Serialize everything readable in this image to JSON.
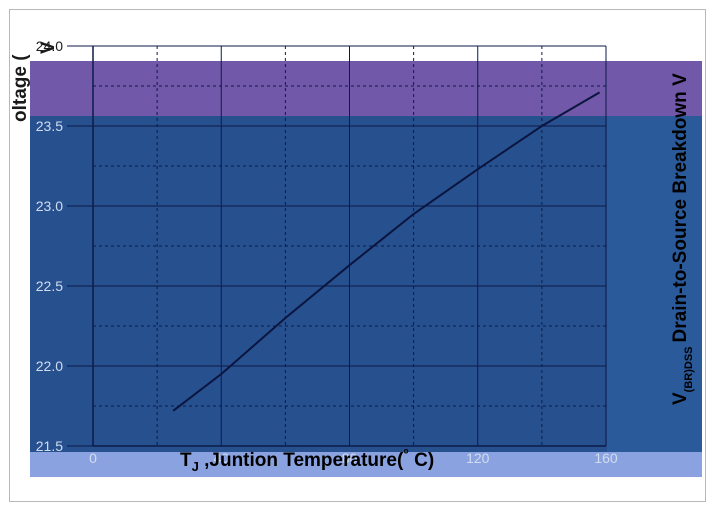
{
  "colors": {
    "plot_top_band": "#7258a8",
    "plot_body": "#27508f",
    "right_strip": "#2a5a9a",
    "bottom_strip": "#8aa3e0",
    "grid_major": "#0b1a4a",
    "grid_minor": "#0b1a4a",
    "line": "#0a1540",
    "tick_text_light": "#d2dcef",
    "tick_text_dark": "#1a1a1a"
  },
  "chart_data": {
    "type": "line",
    "title": "",
    "xlabel": "T",
    "xlabel_sub": "J",
    "xlabel_rest": " ,Juntion Temperature(",
    "xlabel_degree": "°",
    "xlabel_unit": " C)",
    "ylabel_main": "Drain-to-Source Breakdown V",
    "ylabel_prefix": "V",
    "ylabel_sub": "(BR)DSS",
    "ylabel_top_fragment": "oltage (",
    "ylabel_corner_fragment": "V",
    "xlim": [
      0,
      160
    ],
    "ylim": [
      21.5,
      24.0
    ],
    "x_ticks": [
      0,
      40,
      80,
      120,
      160
    ],
    "x_tick_labels": [
      "0",
      "40",
      "80",
      "120",
      "160"
    ],
    "y_ticks": [
      21.5,
      22.0,
      22.5,
      23.0,
      23.5,
      24.0
    ],
    "y_tick_labels": [
      "21.5",
      "22.0",
      "22.5",
      "23.0",
      "23.5",
      "24.0"
    ],
    "grid": true,
    "series": [
      {
        "x": [
          25,
          40,
          60,
          80,
          100,
          120,
          140,
          158
        ],
        "y": [
          21.72,
          21.95,
          22.3,
          22.63,
          22.95,
          23.23,
          23.5,
          23.71
        ]
      }
    ]
  }
}
